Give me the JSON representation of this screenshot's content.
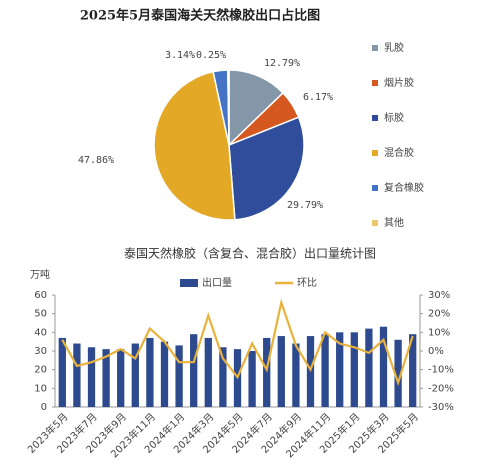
{
  "chart_data": [
    {
      "type": "pie",
      "title": "2025年5月泰国海关天然橡胶出口占比图",
      "categories": [
        "乳胶",
        "烟片胶",
        "标胶",
        "混合胶",
        "复合橡胶",
        "其他"
      ],
      "values": [
        12.79,
        6.17,
        29.79,
        47.86,
        3.14,
        0.25
      ],
      "value_labels": [
        "12.79%",
        "6.17%",
        "29.79%",
        "47.86%",
        "3.14%",
        "0.25%"
      ],
      "colors": [
        "#8497a8",
        "#d4581f",
        "#2f4d9a",
        "#e3a825",
        "#4472c4",
        "#ecc86a"
      ]
    },
    {
      "type": "bar_line",
      "title": "泰国天然橡胶（含复合、混合胶）出口量统计图",
      "ylabel": "万吨",
      "categories": [
        "2023年5月",
        null,
        "2023年7月",
        null,
        "2023年9月",
        null,
        "2023年11月",
        null,
        "2024年1月",
        null,
        "2024年3月",
        null,
        "2024年5月",
        null,
        "2024年7月",
        null,
        "2024年9月",
        null,
        "2024年11月",
        null,
        "2025年1月",
        null,
        "2025年3月",
        null,
        "2025年5月"
      ],
      "series": [
        {
          "name": "出口量",
          "color": "#2e4a8e",
          "values": [
            37,
            34,
            32,
            31,
            31,
            34,
            37,
            35,
            33,
            39,
            37,
            32,
            31,
            30,
            37,
            38,
            34,
            38,
            39,
            40,
            40,
            42,
            43,
            36,
            39
          ]
        },
        {
          "name": "环比",
          "color": "#e8b23c",
          "axis": "y2",
          "values": [
            6,
            -8,
            -6,
            -3,
            1,
            -4,
            12,
            5,
            -6,
            -6,
            19,
            -4,
            -14,
            4,
            -10,
            26,
            3,
            -10,
            10,
            4,
            2,
            -1,
            6,
            -17,
            8
          ]
        }
      ],
      "ylim": [
        0,
        60
      ],
      "yticks": [
        0,
        10,
        20,
        30,
        40,
        50,
        60
      ],
      "y2lim": [
        -30,
        30
      ],
      "y2ticks": [
        {
          "value": -30,
          "label": "-30%"
        },
        {
          "value": -20,
          "label": "-20%"
        },
        {
          "value": -10,
          "label": "-10%"
        },
        {
          "value": 0,
          "label": "0%"
        },
        {
          "value": 10,
          "label": "10%"
        },
        {
          "value": 20,
          "label": "20%"
        },
        {
          "value": 30,
          "label": "30%"
        }
      ],
      "legend": "top"
    }
  ]
}
